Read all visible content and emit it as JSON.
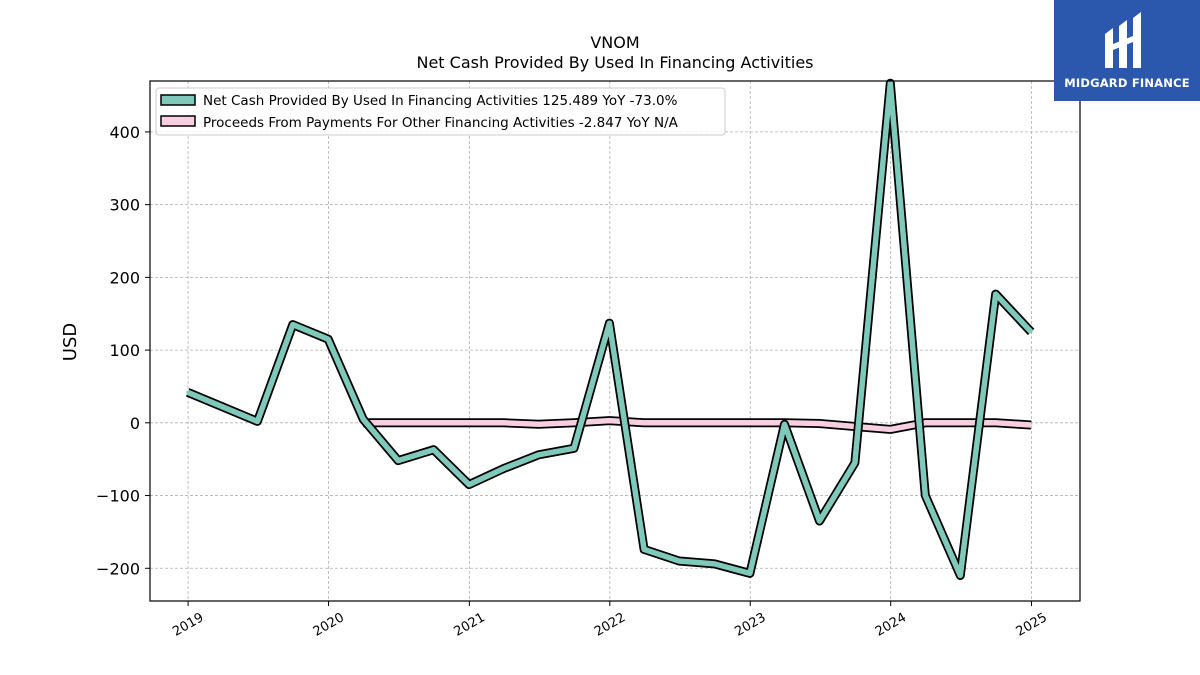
{
  "brand": {
    "name": "MIDGARD FINANCE",
    "bg_color": "#2b57ad"
  },
  "chart_data": {
    "type": "line",
    "title": "VNOM",
    "subtitle": "Net Cash Provided By Used In Financing Activities",
    "ylabel": "USD",
    "xlabel": "",
    "ylim": [
      -245,
      470
    ],
    "yticks": [
      -200,
      -100,
      0,
      100,
      200,
      300,
      400
    ],
    "ytick_labels": [
      "−200",
      "−100",
      "0",
      "100",
      "200",
      "300",
      "400"
    ],
    "xlim": [
      "2018-09-24",
      "2025-05-07"
    ],
    "xticks": [
      "2019-01-01",
      "2020-01-01",
      "2021-01-01",
      "2022-01-01",
      "2023-01-01",
      "2024-01-01",
      "2025-01-01"
    ],
    "xtick_labels": [
      "2019",
      "2020",
      "2021",
      "2022",
      "2023",
      "2024",
      "2025"
    ],
    "grid": true,
    "legend_position": "top-left",
    "series": [
      {
        "name": "Net Cash Provided By Used In Financing Activities",
        "legend_label": "Net Cash Provided By Used In Financing Activities  125.489 YoY -73.0%",
        "color": "#7fc9bb",
        "points": [
          [
            "2018-12-31",
            42
          ],
          [
            "2019-06-30",
            2
          ],
          [
            "2019-09-30",
            135
          ],
          [
            "2019-12-31",
            115
          ],
          [
            "2020-03-31",
            5
          ],
          [
            "2020-06-30",
            -52
          ],
          [
            "2020-09-30",
            -37
          ],
          [
            "2020-12-31",
            -85
          ],
          [
            "2021-03-31",
            -63
          ],
          [
            "2021-06-30",
            -44
          ],
          [
            "2021-09-30",
            -35
          ],
          [
            "2021-12-31",
            137
          ],
          [
            "2022-03-31",
            -174
          ],
          [
            "2022-06-30",
            -190
          ],
          [
            "2022-09-30",
            -194
          ],
          [
            "2022-12-31",
            -207
          ],
          [
            "2023-03-31",
            -2
          ],
          [
            "2023-06-30",
            -135
          ],
          [
            "2023-09-30",
            -55
          ],
          [
            "2023-12-31",
            467
          ],
          [
            "2024-03-31",
            -100
          ],
          [
            "2024-06-30",
            -210
          ],
          [
            "2024-09-30",
            177
          ],
          [
            "2024-12-31",
            125
          ]
        ]
      },
      {
        "name": "Proceeds From Payments For Other Financing Activities",
        "legend_label": "Proceeds From Payments For Other Financing Activities  -2.847 YoY N/A",
        "color": "#f7cfe0",
        "points": [
          [
            "2020-03-31",
            0
          ],
          [
            "2020-06-30",
            0
          ],
          [
            "2020-09-30",
            0
          ],
          [
            "2020-12-31",
            0
          ],
          [
            "2021-03-31",
            0
          ],
          [
            "2021-06-30",
            -2
          ],
          [
            "2021-09-30",
            0
          ],
          [
            "2021-12-31",
            3
          ],
          [
            "2022-03-31",
            0
          ],
          [
            "2022-06-30",
            0
          ],
          [
            "2022-09-30",
            0
          ],
          [
            "2022-12-31",
            0
          ],
          [
            "2023-03-31",
            0
          ],
          [
            "2023-06-30",
            -1
          ],
          [
            "2023-09-30",
            -5
          ],
          [
            "2023-12-31",
            -9
          ],
          [
            "2024-03-31",
            0
          ],
          [
            "2024-06-30",
            0
          ],
          [
            "2024-09-30",
            0
          ],
          [
            "2024-12-31",
            -3
          ]
        ]
      }
    ]
  }
}
